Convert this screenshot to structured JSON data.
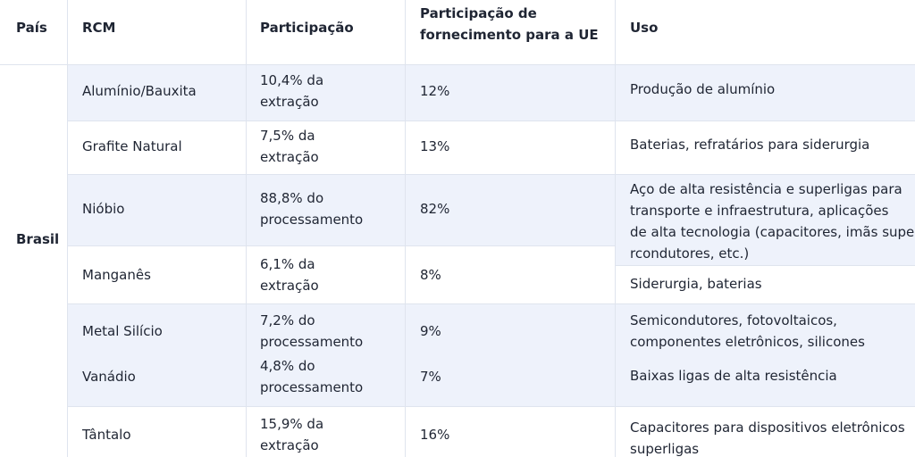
{
  "header": {
    "pais": "País",
    "rcm": "RCM",
    "participacao": "Participação",
    "fornecimento": [
      "Participação de",
      "fornecimento para a UE"
    ],
    "uso": "Uso"
  },
  "country": "Brasil",
  "rows": [
    {
      "rcm": "Alumínio/Bauxita",
      "participacao": [
        "10,4% da",
        "extração"
      ],
      "fornecimento": "12%",
      "uso": [
        "Produção de alumínio"
      ]
    },
    {
      "rcm": "Grafite Natural",
      "participacao": [
        "7,5% da",
        "extração"
      ],
      "fornecimento": "13%",
      "uso": [
        "Baterias, refratários para siderurgia"
      ]
    },
    {
      "rcm": "Nióbio",
      "participacao": [
        "88,8% do",
        "processamento"
      ],
      "fornecimento": "82%",
      "uso": [
        "Aço de alta resistência e superligas para",
        "transporte e infraestrutura, aplicações",
        "de alta tecnologia (capacitores, imãs supe",
        "rcondutores, etc.)"
      ]
    },
    {
      "rcm": "Manganês",
      "participacao": [
        "6,1% da",
        "extração"
      ],
      "fornecimento": "8%",
      "uso": [
        "Siderurgia, baterias"
      ]
    },
    {
      "rcm": "Metal Silício",
      "participacao": [
        "7,2% do",
        "processamento"
      ],
      "fornecimento": "9%",
      "uso": [
        "Semicondutores, fotovoltaicos,",
        "componentes eletrônicos, silicones"
      ]
    },
    {
      "rcm": "Vanádio",
      "participacao": [
        "4,8% do",
        "processamento"
      ],
      "fornecimento": "7%",
      "uso": [
        "Baixas ligas de alta resistência"
      ]
    },
    {
      "rcm": "Tântalo",
      "participacao": [
        "15,9% da",
        "extração"
      ],
      "fornecimento": "16%",
      "uso": [
        "Capacitores para dispositivos eletrônicos",
        "superligas"
      ]
    }
  ]
}
